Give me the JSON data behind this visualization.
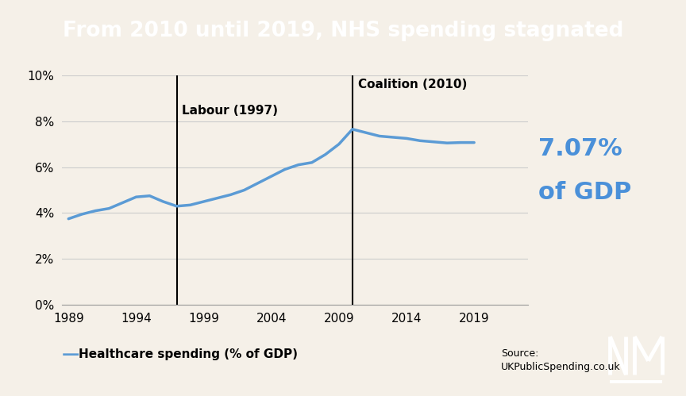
{
  "title": "From 2010 until 2019, NHS spending stagnated",
  "title_bg": "#111111",
  "title_color": "#ffffff",
  "bg_color": "#f5f0e8",
  "line_color": "#5b9bd5",
  "line_width": 2.5,
  "years": [
    1989,
    1990,
    1991,
    1992,
    1993,
    1994,
    1995,
    1996,
    1997,
    1998,
    1999,
    2000,
    2001,
    2002,
    2003,
    2004,
    2005,
    2006,
    2007,
    2008,
    2009,
    2010,
    2011,
    2012,
    2013,
    2014,
    2015,
    2016,
    2017,
    2018,
    2019
  ],
  "values": [
    3.75,
    3.95,
    4.1,
    4.2,
    4.45,
    4.7,
    4.75,
    4.5,
    4.3,
    4.35,
    4.5,
    4.65,
    4.8,
    5.0,
    5.3,
    5.6,
    5.9,
    6.1,
    6.2,
    6.55,
    7.0,
    7.65,
    7.5,
    7.35,
    7.3,
    7.25,
    7.15,
    7.1,
    7.05,
    7.07,
    7.07
  ],
  "vline_labour_x": 1997,
  "vline_coalition_x": 2010,
  "label_labour": "Labour (1997)",
  "label_coalition": "Coalition (2010)",
  "annotation_value": "7.07%",
  "annotation_gdp": "of GDP",
  "annotation_color": "#4a90d9",
  "ylim": [
    0,
    10
  ],
  "yticks": [
    0,
    2,
    4,
    6,
    8,
    10
  ],
  "ytick_labels": [
    "0%",
    "2%",
    "4%",
    "6%",
    "8%",
    "10%"
  ],
  "xticks": [
    1989,
    1994,
    1999,
    2004,
    2009,
    2014,
    2019
  ],
  "legend_label": "Healthcare spending (% of GDP)",
  "source_text": "Source:\nUKPublicSpending.co.uk",
  "grid_color": "#cccccc",
  "xlim_left": 1988.5,
  "xlim_right": 2023
}
